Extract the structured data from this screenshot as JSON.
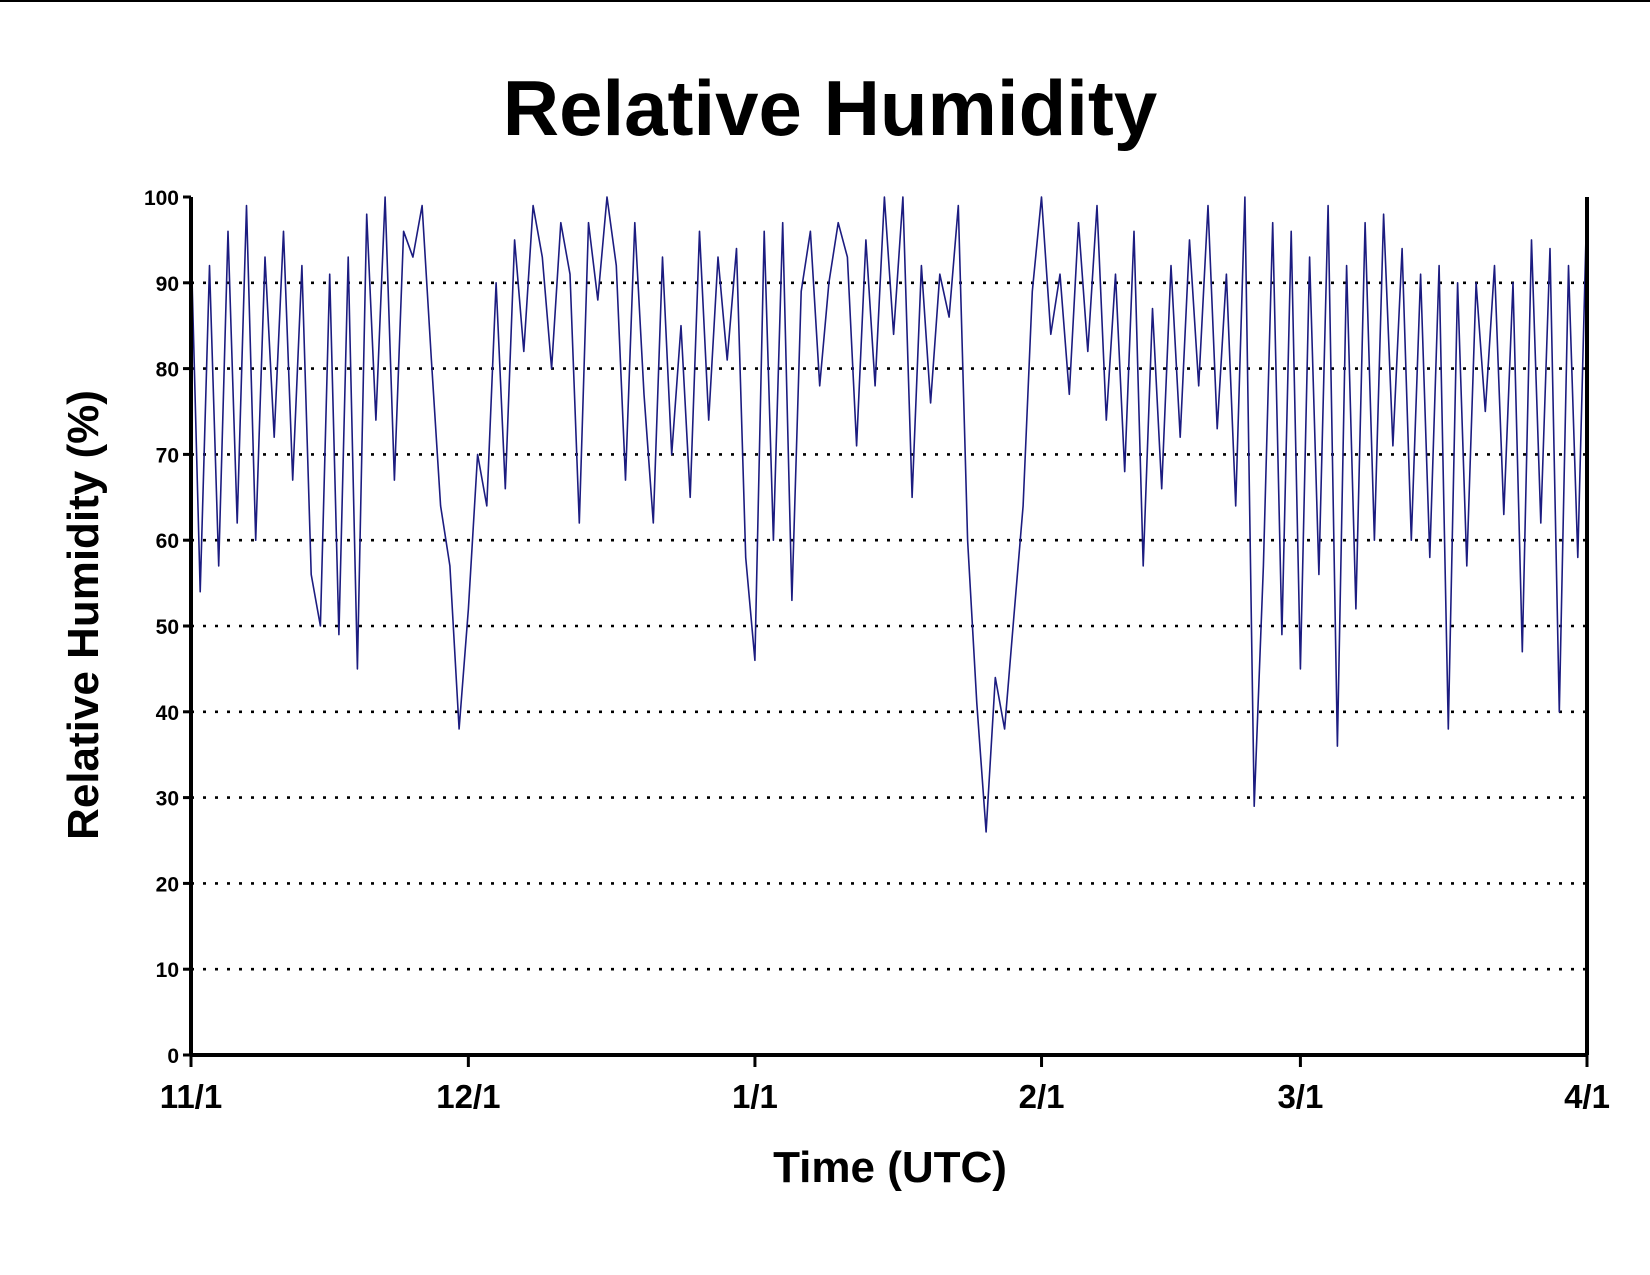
{
  "chart_data": {
    "type": "line",
    "title": "Relative Humidity",
    "xlabel": "Time (UTC)",
    "ylabel": "Relative Humidity (%)",
    "ylim": [
      0,
      100
    ],
    "yticks": [
      "0",
      "10",
      "20",
      "30",
      "40",
      "50",
      "60",
      "70",
      "80",
      "90",
      "100"
    ],
    "xtick_labels": [
      "11/1",
      "12/1",
      "1/1",
      "2/1",
      "3/1",
      "4/1"
    ],
    "xlim": [
      "11/1",
      "4/1"
    ],
    "grid": "horizontal dotted",
    "line_color": "#1c1c80",
    "series": [
      {
        "x": [
          "11/1",
          "11/2",
          "11/3",
          "11/4",
          "11/5",
          "11/6",
          "11/7",
          "11/8",
          "11/9",
          "11/10",
          "11/11",
          "11/12",
          "11/13",
          "11/14",
          "11/15",
          "11/16",
          "11/17",
          "11/18",
          "11/19",
          "11/20",
          "11/21",
          "11/22",
          "11/23",
          "11/24",
          "11/25",
          "11/26",
          "11/27",
          "11/28",
          "11/29",
          "11/30",
          "12/1",
          "12/2",
          "12/3",
          "12/4",
          "12/5",
          "12/6",
          "12/7",
          "12/8",
          "12/9",
          "12/10",
          "12/11",
          "12/12",
          "12/13",
          "12/14",
          "12/15",
          "12/16",
          "12/17",
          "12/18",
          "12/19",
          "12/20",
          "12/21",
          "12/22",
          "12/23",
          "12/24",
          "12/25",
          "12/26",
          "12/27",
          "12/28",
          "12/29",
          "12/30",
          "12/31",
          "1/1",
          "1/2",
          "1/3",
          "1/4",
          "1/5",
          "1/6",
          "1/7",
          "1/8",
          "1/9",
          "1/10",
          "1/11",
          "1/12",
          "1/13",
          "1/14",
          "1/15",
          "1/16",
          "1/17",
          "1/18",
          "1/19",
          "1/20",
          "1/21",
          "1/22",
          "1/23",
          "1/24",
          "1/25",
          "1/26",
          "1/27",
          "1/28",
          "1/29",
          "1/30",
          "1/31",
          "2/1",
          "2/2",
          "2/3",
          "2/4",
          "2/5",
          "2/6",
          "2/7",
          "2/8",
          "2/9",
          "2/10",
          "2/11",
          "2/12",
          "2/13",
          "2/14",
          "2/15",
          "2/16",
          "2/17",
          "2/18",
          "2/19",
          "2/20",
          "2/21",
          "2/22",
          "2/23",
          "2/24",
          "2/25",
          "2/26",
          "2/27",
          "2/28",
          "3/1",
          "3/2",
          "3/3",
          "3/4",
          "3/5",
          "3/6",
          "3/7",
          "3/8",
          "3/9",
          "3/10",
          "3/11",
          "3/12",
          "3/13",
          "3/14",
          "3/15",
          "3/16",
          "3/17",
          "3/18",
          "3/19",
          "3/20",
          "3/21",
          "3/22",
          "3/23",
          "3/24",
          "3/25",
          "3/26",
          "3/27",
          "3/28",
          "3/29",
          "3/30",
          "3/31",
          "4/1"
        ],
        "y": [
          95,
          54,
          92,
          57,
          96,
          62,
          99,
          60,
          93,
          72,
          96,
          67,
          92,
          56,
          50,
          91,
          49,
          93,
          45,
          98,
          74,
          100,
          67,
          96,
          93,
          99,
          81,
          64,
          57,
          38,
          52,
          70,
          64,
          90,
          66,
          95,
          82,
          99,
          93,
          80,
          97,
          91,
          62,
          97,
          88,
          100,
          92,
          67,
          97,
          77,
          62,
          93,
          70,
          85,
          65,
          96,
          74,
          93,
          81,
          94,
          58,
          46,
          96,
          60,
          97,
          53,
          89,
          96,
          78,
          90,
          97,
          93,
          71,
          95,
          78,
          100,
          84,
          100,
          65,
          92,
          76,
          91,
          86,
          99,
          60,
          41,
          26,
          44,
          38,
          51,
          64,
          89,
          100,
          84,
          91,
          77,
          97,
          82,
          99,
          74,
          91,
          68,
          96,
          57,
          87,
          66,
          92,
          72,
          95,
          78,
          99,
          73,
          91,
          64,
          100,
          29,
          57,
          97,
          49,
          96,
          45,
          93,
          56,
          99,
          36,
          92,
          52,
          97,
          60,
          98,
          71,
          94,
          60,
          91,
          58,
          92,
          38,
          90,
          57,
          90,
          75,
          92,
          63,
          90,
          47,
          95,
          62,
          94,
          40,
          92,
          58,
          100
        ]
      }
    ]
  }
}
